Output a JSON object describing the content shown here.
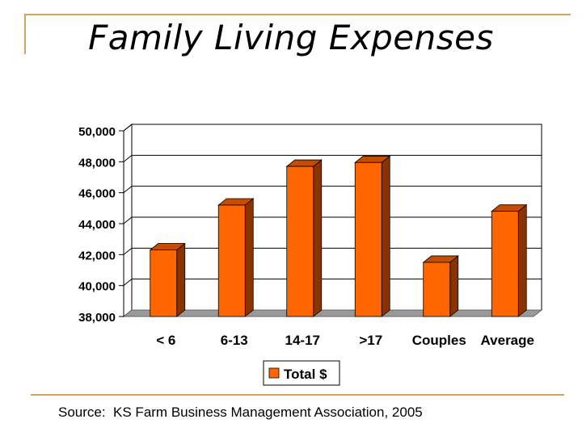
{
  "slide": {
    "title": "Family Living Expenses",
    "source": "Source:  KS Farm Business Management Association, 2005"
  },
  "colors": {
    "bar_front": "#ff6600",
    "bar_side": "#8b3300",
    "bar_top": "#c44d00",
    "frame": "#d4a460",
    "grid": "#000000",
    "floor": "#999999"
  },
  "chart_data": {
    "type": "bar",
    "categories": [
      "< 6",
      "6-13",
      "14-17",
      ">17",
      "Couples",
      "Average"
    ],
    "series": [
      {
        "name": "Total $",
        "values": [
          42300,
          45200,
          47700,
          47950,
          41500,
          44800
        ]
      }
    ],
    "ylim": [
      38000,
      50000
    ],
    "yticks": [
      "38,000",
      "40,000",
      "42,000",
      "44,000",
      "46,000",
      "48,000",
      "50,000"
    ],
    "ytick_values": [
      38000,
      40000,
      42000,
      44000,
      46000,
      48000,
      50000
    ],
    "grid": true,
    "legend_position": "bottom",
    "three_d": true
  }
}
